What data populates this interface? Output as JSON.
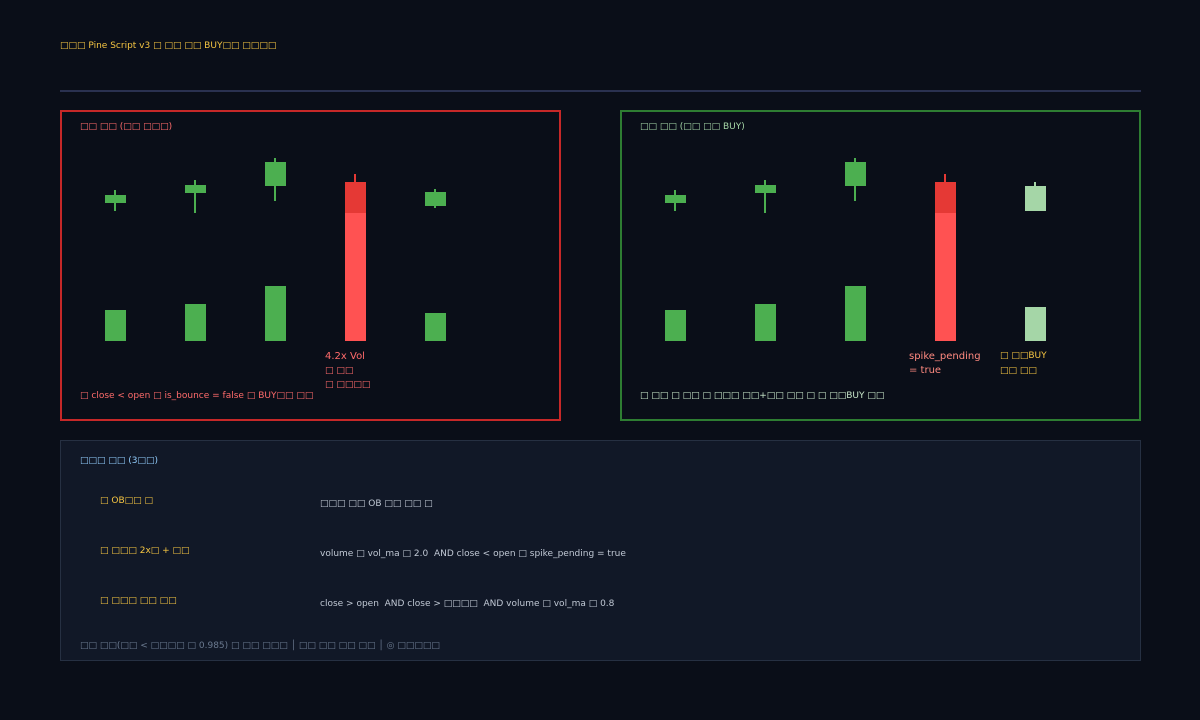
{
  "header": {
    "title": "□□□ Pine Script v3 □ □□ □□ BUY□□ □□□□"
  },
  "left_panel": {
    "label": "□□ □□ (□□ □□□)",
    "annotation": [
      "4.2x Vol",
      "□ □□",
      "□ □□□□"
    ],
    "note": "□ close < open □ is_bounce = false □ BUY□□ □□"
  },
  "right_panel": {
    "label": "□□ □□ (□□ □□ BUY)",
    "annotation_left": [
      "spike_pending",
      "= true"
    ],
    "annotation_right": [
      "□ □□BUY",
      "□□ □□"
    ],
    "note": "□ □□ □ □□ □ □□□ □□+□□ □□ □ □ □□BUY □□"
  },
  "conditions": {
    "title": "□□□ □□ (3□□)",
    "rows": [
      [
        "□ OB□□ □",
        "□□□ □□ OB □□ □□ □"
      ],
      [
        "□ □□□ 2x□ + □□",
        "volume □ vol_ma □ 2.0  AND close < open □ spike_pending = true"
      ],
      [
        "□ □□□ □□ □□",
        "close > open  AND close > □□□□  AND volume □ vol_ma □ 0.8"
      ]
    ],
    "footer": "□□ □□(□□ < □□□□ □ 0.985) □ □□ □□□ │ □□ □□ □□ □□ │ ◎ □□□□□"
  }
}
